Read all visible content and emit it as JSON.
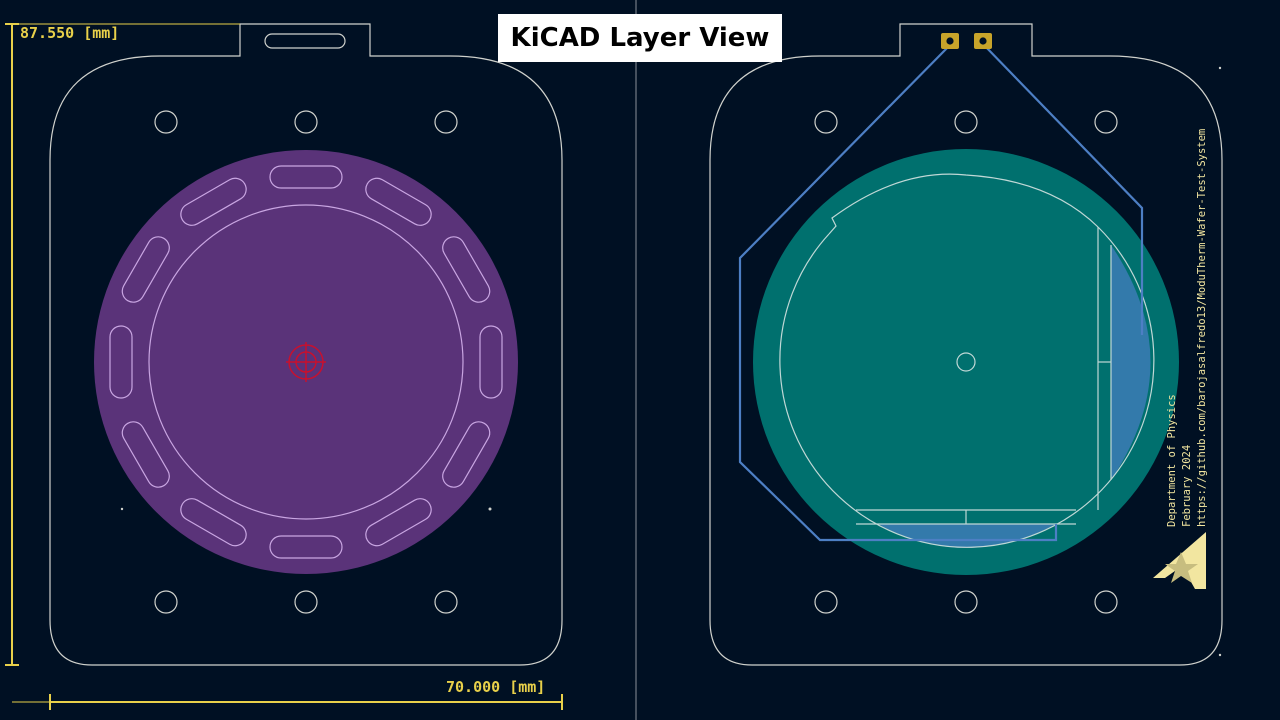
{
  "title": "KiCAD Layer View",
  "dimensions": {
    "height_label": "87.550 [mm]",
    "width_label": "70.000 [mm]"
  },
  "board_text": {
    "line1": "Department of Physics",
    "line2": "February 2024",
    "line3": "https://github.com/barojasalfredo13/ModuTherm-Wafer-Test-System"
  },
  "colors": {
    "background": "#001023",
    "edge_cuts": "#d0d2cd",
    "dimension": "#e8d04a",
    "front_copper_fill": "#5a3379",
    "back_copper_fill": "#00706e",
    "track": "#4d7fc4",
    "pad": "#c8a42a",
    "drill_marker": "#c8102e",
    "silkscreen": "#f2e6a0"
  },
  "views": [
    "left-layer-view",
    "right-layer-view"
  ]
}
